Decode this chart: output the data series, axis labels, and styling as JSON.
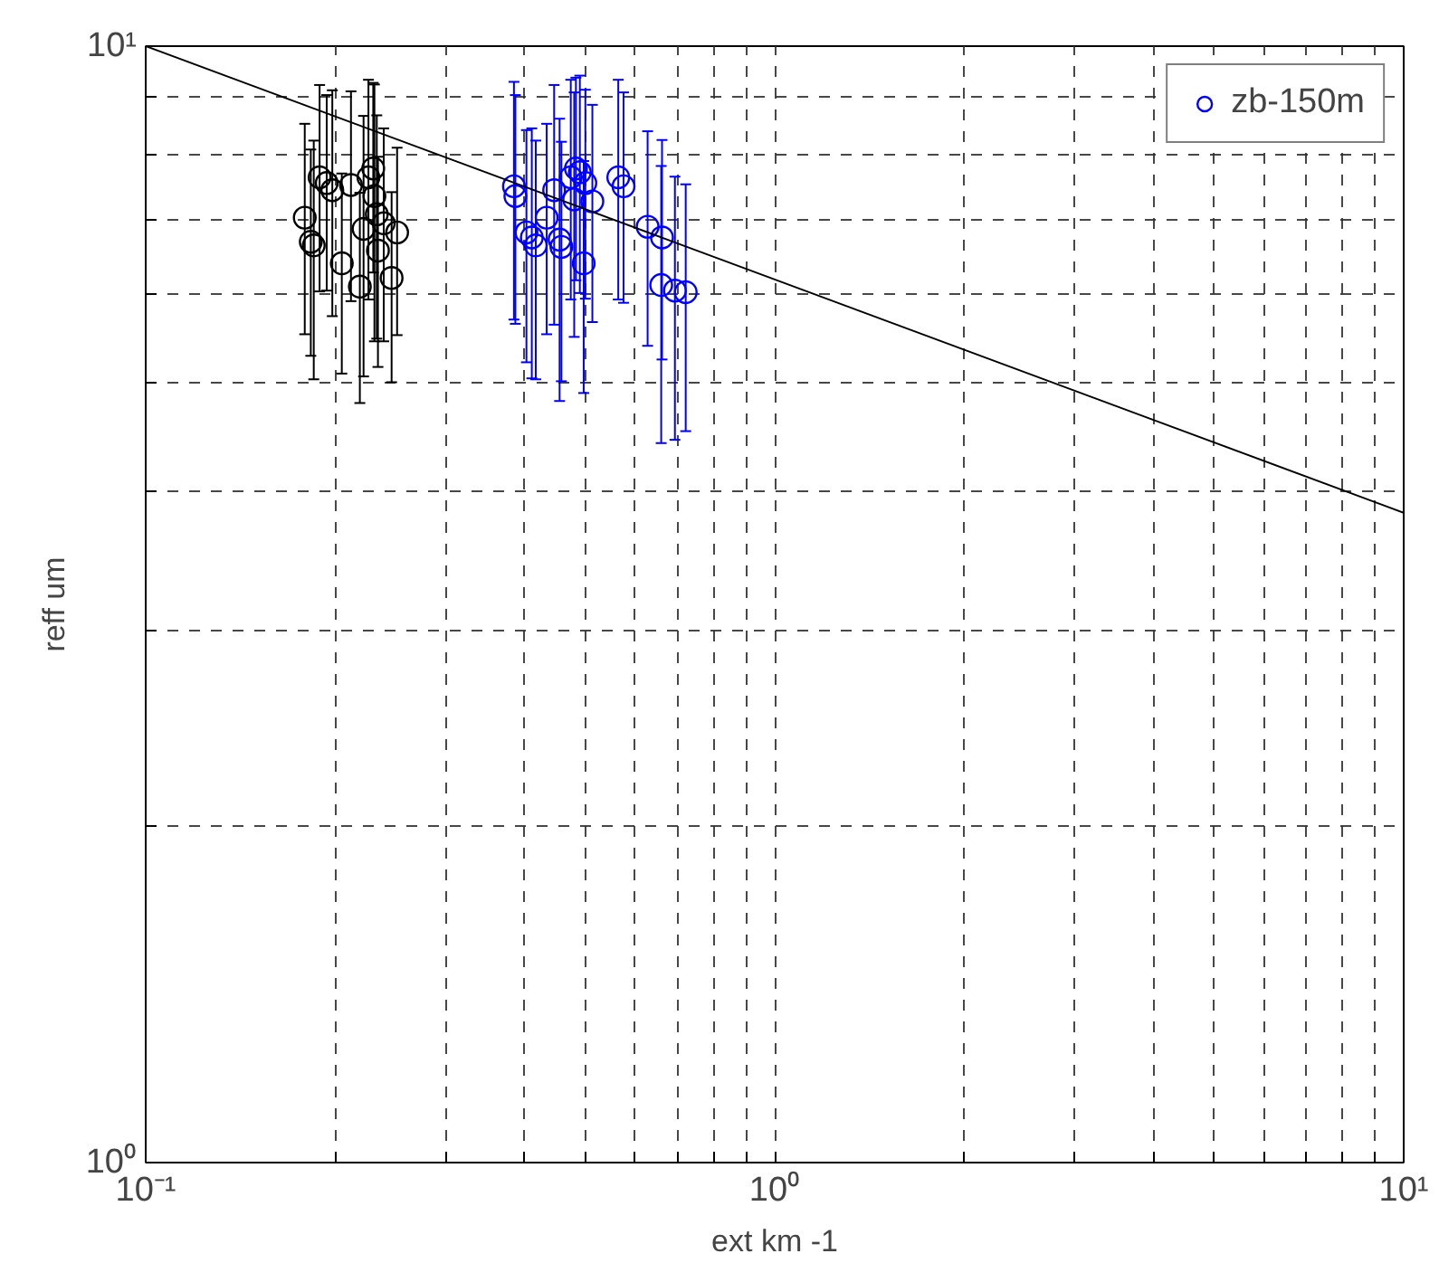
{
  "chart_data": {
    "type": "scatter",
    "xlabel": "ext km -1",
    "ylabel": "reff um",
    "log": "xy",
    "grid": true,
    "legend": "top right",
    "marker": "circle",
    "xlim": [
      0.1,
      10
    ],
    "ylim": [
      1,
      10
    ],
    "xticks": [
      {
        "value": 0.1,
        "label": "10⁻¹"
      },
      {
        "value": 0.2,
        "label": null
      },
      {
        "value": 0.3,
        "label": null
      },
      {
        "value": 0.4,
        "label": null
      },
      {
        "value": 0.5,
        "label": null
      },
      {
        "value": 0.6,
        "label": null
      },
      {
        "value": 0.7,
        "label": null
      },
      {
        "value": 0.8,
        "label": null
      },
      {
        "value": 0.9,
        "label": null
      },
      {
        "value": 1,
        "label": "10⁰"
      },
      {
        "value": 2,
        "label": null
      },
      {
        "value": 3,
        "label": null
      },
      {
        "value": 4,
        "label": null
      },
      {
        "value": 5,
        "label": null
      },
      {
        "value": 6,
        "label": null
      },
      {
        "value": 7,
        "label": null
      },
      {
        "value": 8,
        "label": null
      },
      {
        "value": 9,
        "label": null
      },
      {
        "value": 10,
        "label": "10¹"
      }
    ],
    "yticks": [
      {
        "value": 1,
        "label": "10⁰"
      },
      {
        "value": 2,
        "label": null
      },
      {
        "value": 3,
        "label": null
      },
      {
        "value": 4,
        "label": null
      },
      {
        "value": 5,
        "label": null
      },
      {
        "value": 6,
        "label": null
      },
      {
        "value": 7,
        "label": null
      },
      {
        "value": 8,
        "label": null
      },
      {
        "value": 9,
        "label": null
      },
      {
        "value": 10,
        "label": "10¹"
      }
    ],
    "series": [
      {
        "color": "#000000",
        "x": [
          0.179,
          0.183,
          0.185,
          0.189,
          0.194,
          0.198,
          0.205,
          0.212,
          0.219,
          0.222,
          0.226,
          0.23,
          0.231,
          0.233,
          0.234,
          0.239,
          0.251,
          0.246
        ],
        "values": [
          7.02,
          6.68,
          6.63,
          7.63,
          7.54,
          7.43,
          6.39,
          7.51,
          6.09,
          6.86,
          7.63,
          7.77,
          7.34,
          7.07,
          6.56,
          6.94,
          6.81,
          6.2
        ],
        "errors": [
          1.5,
          1.4,
          1.6,
          1.6,
          1.5,
          1.7,
          1.3,
          1.6,
          1.3,
          1.8,
          1.7,
          1.5,
          1.9,
          1.6,
          1.4,
          1.5,
          1.3,
          1.2
        ]
      },
      {
        "name": "zb-150m",
        "color": "#0000ff",
        "x": [
          0.385,
          0.387,
          0.403,
          0.417,
          0.411,
          0.434,
          0.446,
          0.455,
          0.458,
          0.474,
          0.483,
          0.48,
          0.49,
          0.497,
          0.513,
          0.5,
          0.564,
          0.575,
          0.628,
          0.662,
          0.66,
          0.694,
          0.722
        ],
        "values": [
          7.49,
          7.34,
          6.81,
          6.63,
          6.74,
          7.02,
          7.43,
          6.71,
          6.61,
          7.63,
          7.77,
          7.29,
          7.71,
          6.39,
          7.26,
          7.54,
          7.63,
          7.49,
          6.89,
          6.74,
          6.11,
          6.04,
          6.02
        ],
        "errors": [
          1.8,
          1.7,
          1.6,
          1.6,
          1.7,
          1.5,
          1.8,
          1.9,
          1.6,
          1.7,
          1.6,
          1.8,
          1.7,
          1.5,
          1.6,
          1.6,
          1.7,
          1.6,
          1.5,
          1.5,
          1.7,
          1.6,
          1.5
        ]
      },
      {
        "type": "line",
        "marker": "none",
        "color": "#000000",
        "x": [
          0.1,
          10
        ],
        "values": [
          10,
          3.82
        ]
      }
    ]
  }
}
